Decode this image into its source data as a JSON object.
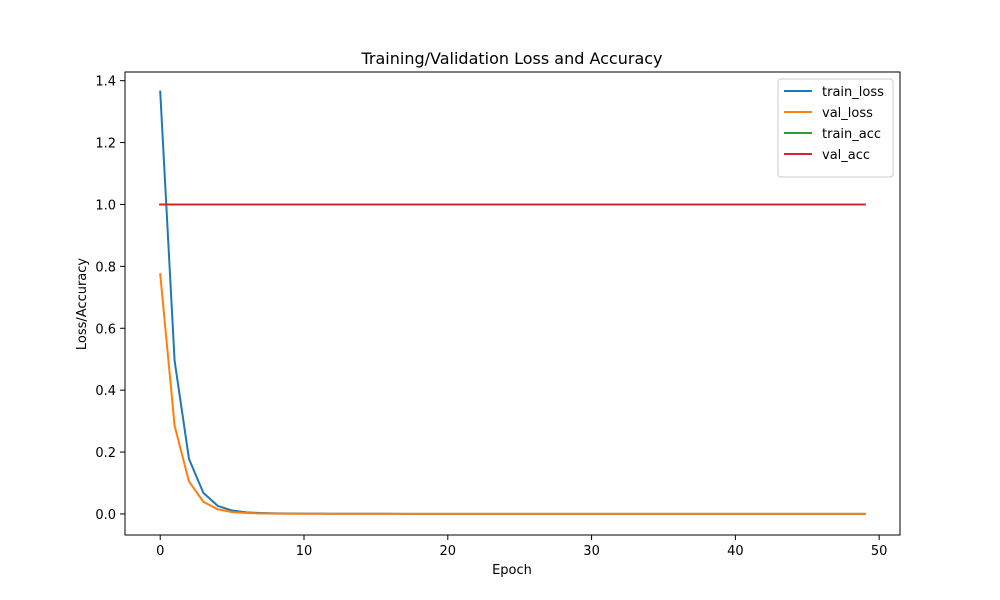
{
  "chart_data": {
    "type": "line",
    "title": "Training/Validation Loss and Accuracy",
    "xlabel": "Epoch",
    "ylabel": "Loss/Accuracy",
    "xlim": [
      -2.45,
      51.45
    ],
    "ylim": [
      -0.068,
      1.428
    ],
    "xticks": [
      0,
      10,
      20,
      30,
      40,
      50
    ],
    "yticks": [
      0.0,
      0.2,
      0.4,
      0.6,
      0.8,
      1.0,
      1.2,
      1.4
    ],
    "grid": false,
    "legend": {
      "placement": "top-right"
    },
    "x": [
      0,
      1,
      2,
      3,
      4,
      5,
      6,
      7,
      8,
      9,
      10,
      11,
      12,
      13,
      14,
      15,
      16,
      17,
      18,
      19,
      20,
      21,
      22,
      23,
      24,
      25,
      26,
      27,
      28,
      29,
      30,
      31,
      32,
      33,
      34,
      35,
      36,
      37,
      38,
      39,
      40,
      41,
      42,
      43,
      44,
      45,
      46,
      47,
      48,
      49
    ],
    "series": [
      {
        "name": "train_loss",
        "color": "#1f77b4",
        "values": [
          1.365,
          0.495,
          0.178,
          0.068,
          0.026,
          0.011,
          0.005,
          0.003,
          0.002,
          0.0015,
          0.001,
          0.001,
          0.0008,
          0.0007,
          0.0006,
          0.0005,
          0.0005,
          0.0004,
          0.0004,
          0.0003,
          0.0003,
          0.0003,
          0.0002,
          0.0002,
          0.0002,
          0.0002,
          0.0002,
          0.0001,
          0.0001,
          0.0001,
          0.0001,
          0.0001,
          0.0001,
          0.0001,
          0.0001,
          0.0001,
          0.0001,
          0.0001,
          0.0001,
          0.0001,
          0.0001,
          0.0001,
          0.0001,
          0.0001,
          0.0001,
          0.0001,
          0.0001,
          0.0001,
          0.0001,
          0.0001
        ]
      },
      {
        "name": "val_loss",
        "color": "#ff7f0e",
        "values": [
          0.775,
          0.285,
          0.105,
          0.039,
          0.015,
          0.006,
          0.003,
          0.0015,
          0.001,
          0.0008,
          0.0006,
          0.0005,
          0.0004,
          0.0003,
          0.0003,
          0.0002,
          0.0002,
          0.0002,
          0.0002,
          0.0001,
          0.0001,
          0.0001,
          0.0001,
          0.0001,
          0.0001,
          0.0001,
          0.0001,
          0.0001,
          0.0001,
          0.0001,
          0.0001,
          0.0001,
          0.0001,
          0.0001,
          0.0001,
          0.0001,
          0.0001,
          0.0001,
          0.0001,
          0.0001,
          0.0001,
          0.0001,
          0.0001,
          0.0001,
          0.0001,
          0.0001,
          0.0001,
          0.0001,
          0.0001,
          0.0001
        ]
      },
      {
        "name": "train_acc",
        "color": "#2ca02c",
        "values": [
          1,
          1,
          1,
          1,
          1,
          1,
          1,
          1,
          1,
          1,
          1,
          1,
          1,
          1,
          1,
          1,
          1,
          1,
          1,
          1,
          1,
          1,
          1,
          1,
          1,
          1,
          1,
          1,
          1,
          1,
          1,
          1,
          1,
          1,
          1,
          1,
          1,
          1,
          1,
          1,
          1,
          1,
          1,
          1,
          1,
          1,
          1,
          1,
          1,
          1
        ]
      },
      {
        "name": "val_acc",
        "color": "#d62728",
        "values": [
          1,
          1,
          1,
          1,
          1,
          1,
          1,
          1,
          1,
          1,
          1,
          1,
          1,
          1,
          1,
          1,
          1,
          1,
          1,
          1,
          1,
          1,
          1,
          1,
          1,
          1,
          1,
          1,
          1,
          1,
          1,
          1,
          1,
          1,
          1,
          1,
          1,
          1,
          1,
          1,
          1,
          1,
          1,
          1,
          1,
          1,
          1,
          1,
          1,
          1
        ]
      }
    ]
  }
}
